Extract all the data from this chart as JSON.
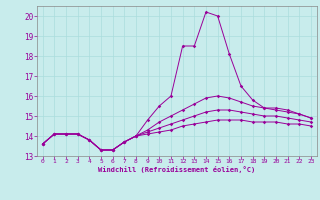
{
  "background_color": "#c8ecec",
  "grid_color": "#aadddd",
  "line_color": "#990099",
  "xlim": [
    -0.5,
    23.5
  ],
  "ylim": [
    13,
    20.5
  ],
  "xticks": [
    0,
    1,
    2,
    3,
    4,
    5,
    6,
    7,
    8,
    9,
    10,
    11,
    12,
    13,
    14,
    15,
    16,
    17,
    18,
    19,
    20,
    21,
    22,
    23
  ],
  "yticks": [
    13,
    14,
    15,
    16,
    17,
    18,
    19,
    20
  ],
  "xlabel": "Windchill (Refroidissement éolien,°C)",
  "curve1_y": [
    13.6,
    14.1,
    14.1,
    14.1,
    13.8,
    13.3,
    13.3,
    13.7,
    14.0,
    14.8,
    15.5,
    16.0,
    18.5,
    18.5,
    20.2,
    20.0,
    18.1,
    16.5,
    15.8,
    15.4,
    15.4,
    15.3,
    15.1,
    14.9
  ],
  "curve2_y": [
    13.6,
    14.1,
    14.1,
    14.1,
    13.8,
    13.3,
    13.3,
    13.7,
    14.0,
    14.3,
    14.7,
    15.0,
    15.3,
    15.6,
    15.9,
    16.0,
    15.9,
    15.7,
    15.5,
    15.4,
    15.3,
    15.2,
    15.1,
    14.9
  ],
  "curve3_y": [
    13.6,
    14.1,
    14.1,
    14.1,
    13.8,
    13.3,
    13.3,
    13.7,
    14.0,
    14.2,
    14.4,
    14.6,
    14.8,
    15.0,
    15.2,
    15.3,
    15.3,
    15.2,
    15.1,
    15.0,
    15.0,
    14.9,
    14.8,
    14.7
  ],
  "curve4_y": [
    13.6,
    14.1,
    14.1,
    14.1,
    13.8,
    13.3,
    13.3,
    13.7,
    14.0,
    14.1,
    14.2,
    14.3,
    14.5,
    14.6,
    14.7,
    14.8,
    14.8,
    14.8,
    14.7,
    14.7,
    14.7,
    14.6,
    14.6,
    14.5
  ]
}
